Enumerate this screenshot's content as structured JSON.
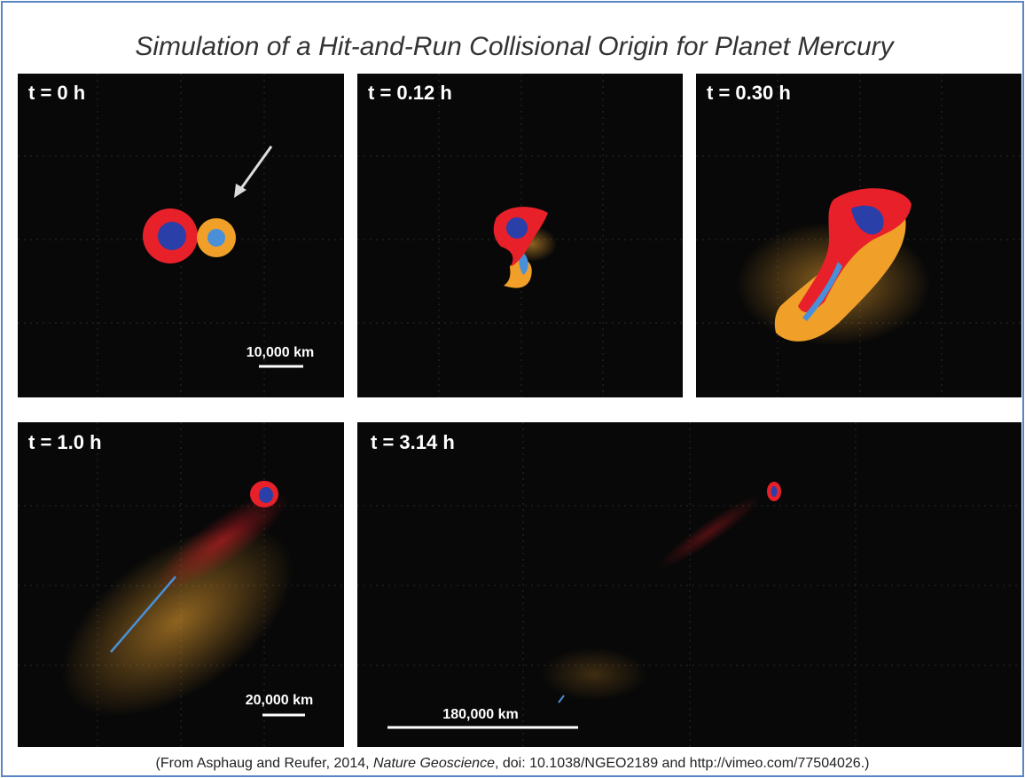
{
  "title": "Simulation of a Hit-and-Run Collisional Origin for Planet Mercury",
  "panels": [
    {
      "label": "t = 0 h",
      "scale_bar": "10,000 km"
    },
    {
      "label": "t = 0.12 h"
    },
    {
      "label": "t = 0.30 h"
    },
    {
      "label": "t = 1.0 h",
      "scale_bar": "20,000 km"
    },
    {
      "label": "t = 3.14 h",
      "scale_bar": "180,000 km"
    }
  ],
  "caption": [
    "(From Asphaug and Reufer, 2014, ",
    "Nature Geoscience",
    ", doi: 10.1038/NGEO2189 and http://vimeo.com/77504026.)"
  ]
}
